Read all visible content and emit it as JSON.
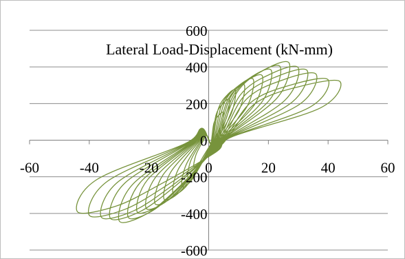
{
  "chart_data": {
    "type": "line",
    "title": "Lateral Load-Displacement (kN-mm)",
    "xlabel": "",
    "ylabel": "",
    "xlim": [
      -60,
      60
    ],
    "ylim": [
      -600,
      600
    ],
    "x_ticks": [
      -60,
      -40,
      -20,
      0,
      20,
      40,
      60
    ],
    "y_ticks": [
      600,
      400,
      200,
      0,
      -200,
      -400,
      -600
    ],
    "x_tick_labels": [
      "-60",
      "-40",
      "-20",
      "0",
      "20",
      "40",
      "60"
    ],
    "y_tick_labels": [
      "600",
      "400",
      "200",
      "0",
      "-200",
      "-400",
      "-600"
    ],
    "grid": "horizontal",
    "legend": "none",
    "line_color": "#77933c",
    "cycles": [
      {
        "dmax": 5,
        "pmax": 150,
        "dmin": -5,
        "pmin": -145
      },
      {
        "dmax": 7,
        "pmax": 220,
        "dmin": -7,
        "pmin": -200
      },
      {
        "dmax": 9,
        "pmax": 270,
        "dmin": -9,
        "pmin": -250
      },
      {
        "dmax": 12,
        "pmax": 300,
        "dmin": -12,
        "pmin": -290
      },
      {
        "dmax": 15,
        "pmax": 330,
        "dmin": -15,
        "pmin": -320
      },
      {
        "dmax": 18,
        "pmax": 350,
        "dmin": -18,
        "pmin": -345
      },
      {
        "dmax": 21,
        "pmax": 380,
        "dmin": -21,
        "pmin": -370
      },
      {
        "dmax": 24,
        "pmax": 400,
        "dmin": -24,
        "pmin": -390
      },
      {
        "dmax": 27,
        "pmax": 420,
        "dmin": -27,
        "pmin": -420
      },
      {
        "dmax": 30,
        "pmax": 395,
        "dmin": -30,
        "pmin": -440
      },
      {
        "dmax": 33,
        "pmax": 380,
        "dmin": -33,
        "pmin": -425
      },
      {
        "dmax": 36,
        "pmax": 360,
        "dmin": -36,
        "pmin": -420
      },
      {
        "dmax": 40,
        "pmax": 330,
        "dmin": -40,
        "pmin": -410
      },
      {
        "dmax": 44,
        "pmax": 320,
        "dmin": -44,
        "pmin": -390
      }
    ]
  }
}
